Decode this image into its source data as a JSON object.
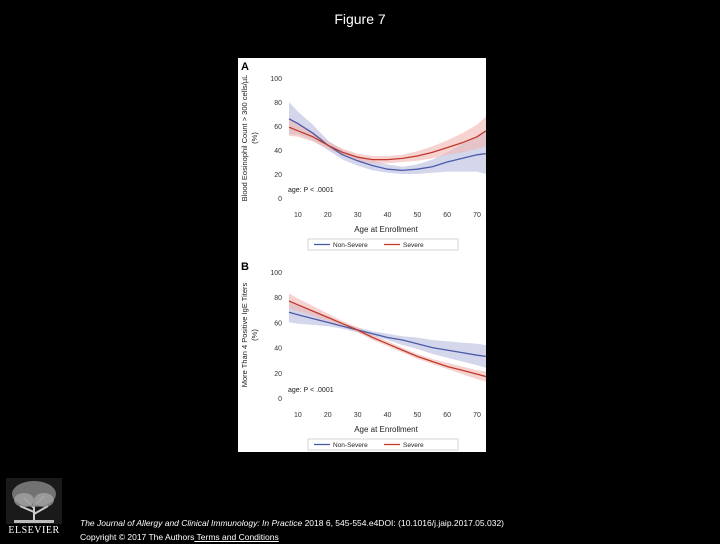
{
  "figure_title": "Figure 7",
  "footer": {
    "journal": "The Journal of Allergy and Clinical Immunology: In Practice",
    "citation": " 2018 6, 545-554.e4DOI: (10.1016/j.jaip.2017.05.032)",
    "copyright": "Copyright © 2017 The Authors",
    "terms_link": " Terms and Conditions"
  },
  "publisher_logo": "ELSEVIER",
  "colors": {
    "non_severe": "#4a5aa8",
    "non_severe_band": "#b8bde0",
    "severe": "#c0392b",
    "severe_band": "#f0b5b0",
    "background": "#000000"
  },
  "chart_data": [
    {
      "type": "line",
      "panel_label": "A",
      "xlabel": "Age at Enrollment",
      "ylabel": "Blood Eosinophil Count > 300 cells/µL (%)",
      "xlim": [
        6,
        73
      ],
      "ylim": [
        0,
        100
      ],
      "xticks": [
        10,
        20,
        30,
        40,
        50,
        60,
        70
      ],
      "yticks": [
        0,
        20,
        40,
        60,
        80,
        100
      ],
      "annotation": "age: P < .0001",
      "legend": [
        "Non-Severe",
        "Severe"
      ],
      "legend_position": "bottom",
      "x": [
        7,
        10,
        15,
        20,
        25,
        30,
        35,
        40,
        45,
        50,
        55,
        60,
        65,
        70,
        73
      ],
      "series": [
        {
          "name": "Non-Severe",
          "values": [
            66,
            62,
            54,
            44,
            36,
            31,
            27,
            24,
            23,
            24,
            26,
            30,
            33,
            36,
            37
          ],
          "lower": [
            53,
            53,
            48,
            40,
            32,
            27,
            23,
            21,
            20,
            20,
            21,
            22,
            22,
            22,
            20
          ],
          "upper": [
            80,
            72,
            61,
            48,
            40,
            35,
            31,
            28,
            26,
            28,
            32,
            38,
            45,
            52,
            55
          ]
        },
        {
          "name": "Severe",
          "values": [
            59,
            56,
            51,
            44,
            38,
            34,
            32,
            32,
            33,
            35,
            38,
            42,
            46,
            51,
            56
          ],
          "lower": [
            52,
            51,
            47,
            41,
            35,
            31,
            29,
            29,
            30,
            31,
            33,
            36,
            38,
            41,
            43
          ],
          "upper": [
            66,
            62,
            55,
            47,
            41,
            37,
            35,
            35,
            36,
            39,
            43,
            48,
            54,
            61,
            68
          ]
        }
      ]
    },
    {
      "type": "line",
      "panel_label": "B",
      "xlabel": "Age at Enrollment",
      "ylabel": "More Than 4 Positive IgE Titers (%)",
      "xlim": [
        6,
        73
      ],
      "ylim": [
        0,
        100
      ],
      "xticks": [
        10,
        20,
        30,
        40,
        50,
        60,
        70
      ],
      "yticks": [
        0,
        20,
        40,
        60,
        80,
        100
      ],
      "annotation": "age: P < .0001",
      "legend": [
        "Non-Severe",
        "Severe"
      ],
      "legend_position": "bottom",
      "x": [
        7,
        10,
        15,
        20,
        25,
        30,
        35,
        40,
        45,
        50,
        55,
        60,
        65,
        70,
        73
      ],
      "series": [
        {
          "name": "Non-Severe",
          "values": [
            68,
            66,
            63,
            60,
            57,
            54,
            51,
            48,
            46,
            43,
            40,
            38,
            36,
            34,
            33
          ],
          "lower": [
            60,
            59,
            58,
            57,
            55,
            52,
            49,
            46,
            42,
            39,
            35,
            32,
            29,
            26,
            24
          ],
          "upper": [
            76,
            74,
            69,
            64,
            59,
            56,
            53,
            51,
            49,
            48,
            46,
            45,
            44,
            43,
            42
          ]
        },
        {
          "name": "Severe",
          "values": [
            77,
            74,
            69,
            64,
            59,
            54,
            48,
            43,
            38,
            33,
            29,
            25,
            22,
            19,
            17
          ],
          "lower": [
            71,
            69,
            65,
            61,
            57,
            52,
            46,
            41,
            36,
            31,
            27,
            23,
            19,
            15,
            13
          ],
          "upper": [
            83,
            79,
            73,
            67,
            61,
            56,
            50,
            45,
            40,
            35,
            31,
            28,
            25,
            22,
            21
          ]
        }
      ]
    }
  ]
}
